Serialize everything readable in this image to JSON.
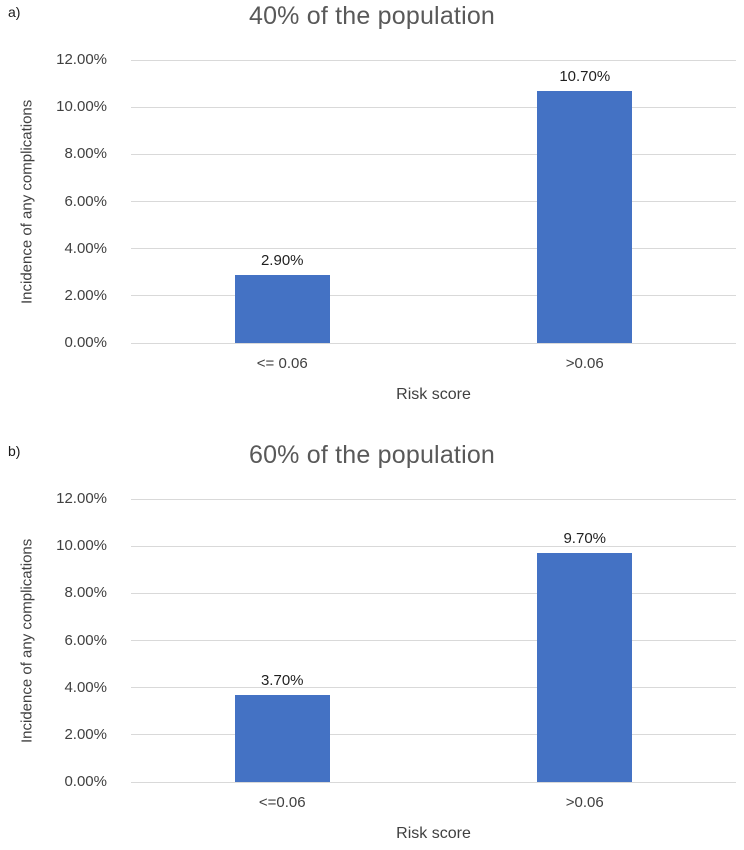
{
  "figure": {
    "description": "Two stacked bar charts comparing incidence of any complications by risk score group",
    "panels": [
      {
        "label": "a)"
      },
      {
        "label": "b)"
      }
    ]
  },
  "chart_data": [
    {
      "type": "bar",
      "panel_label": "a)",
      "title": "40% of the population",
      "categories": [
        "<= 0.06",
        ">0.06"
      ],
      "values": [
        2.9,
        10.7
      ],
      "value_labels": [
        "2.90%",
        "10.70%"
      ],
      "xlabel": "Risk score",
      "ylabel": "Incidence of any complications",
      "ylim": [
        0,
        12
      ],
      "ytick_step": 2,
      "ytick_labels": [
        "0.00%",
        "2.00%",
        "4.00%",
        "6.00%",
        "8.00%",
        "10.00%",
        "12.00%"
      ],
      "grid": true,
      "legend": "none",
      "bar_color": "#4472C4"
    },
    {
      "type": "bar",
      "panel_label": "b)",
      "title": "60% of the population",
      "categories": [
        "<=0.06",
        ">0.06"
      ],
      "values": [
        3.7,
        9.7
      ],
      "value_labels": [
        "3.70%",
        "9.70%"
      ],
      "xlabel": "Risk score",
      "ylabel": "Incidence of any complications",
      "ylim": [
        0,
        12
      ],
      "ytick_step": 2,
      "ytick_labels": [
        "0.00%",
        "2.00%",
        "4.00%",
        "6.00%",
        "8.00%",
        "10.00%",
        "12.00%"
      ],
      "grid": true,
      "legend": "none",
      "bar_color": "#4472C4"
    }
  ],
  "colors": {
    "bar": "#4472C4",
    "gridline": "#D9D9D9",
    "title_text": "#595959",
    "axis_text": "#404040",
    "value_label_text": "#1f1f1f",
    "background": "#ffffff"
  }
}
